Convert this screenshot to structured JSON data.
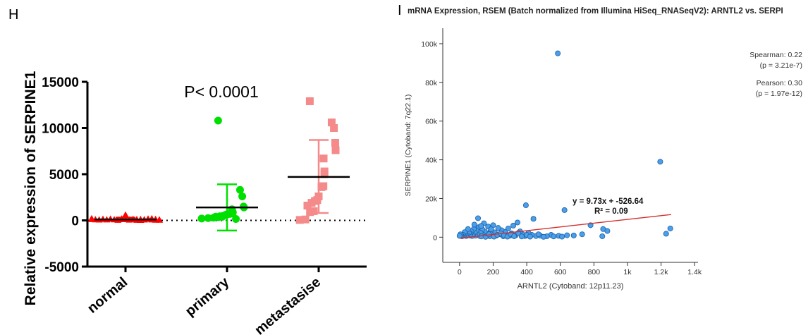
{
  "panels": {
    "left_letter": "H",
    "right_letter": "I"
  },
  "chart_data": [
    {
      "type": "scatter",
      "panel": "H",
      "title": "",
      "annotation": "P< 0.0001",
      "ylabel": "Relative expression of SERPINE1",
      "xlabel": "",
      "ylim": [
        -5000,
        15000
      ],
      "yticks": [
        -5000,
        0,
        5000,
        10000,
        15000
      ],
      "ytick_labels": [
        "-5000",
        "0",
        "5000",
        "10000",
        "15000"
      ],
      "reference_line": 0,
      "categories": [
        "normal",
        "primary",
        "metastasise"
      ],
      "groups": [
        {
          "name": "normal",
          "marker": "triangle",
          "color": "#ff0000",
          "mean": 100,
          "sd_low": -100,
          "sd_high": 300,
          "values": [
            120,
            80,
            60,
            200,
            150,
            90,
            40,
            110,
            130,
            70,
            600,
            180,
            50,
            100,
            160,
            90,
            140,
            75,
            95,
            210,
            60,
            130,
            85,
            170,
            100,
            120,
            45
          ]
        },
        {
          "name": "primary",
          "marker": "circle",
          "color": "#00e000",
          "mean": 1400,
          "sd_low": -1100,
          "sd_high": 3900,
          "values": [
            10800,
            3300,
            2600,
            1500,
            1400,
            1200,
            900,
            800,
            750,
            700,
            650,
            600,
            500,
            450,
            400,
            380,
            350,
            300,
            250,
            200,
            150
          ]
        },
        {
          "name": "metastasise",
          "marker": "square",
          "color": "#f48a8a",
          "mean": 4700,
          "sd_low": 800,
          "sd_high": 8700,
          "values": [
            12900,
            10600,
            10000,
            8400,
            7600,
            6700,
            5300,
            5000,
            3700,
            3600,
            2600,
            2200,
            2100,
            1900,
            1600,
            1000,
            900,
            100,
            50
          ]
        }
      ]
    },
    {
      "type": "scatter",
      "panel": "I",
      "title": "mRNA Expression, RSEM (Batch normalized from Illumina HiSeq_RNASeqV2): ARNTL2 vs. SERPI",
      "xlabel": "ARNTL2 (Cytoband: 12p11.23)",
      "ylabel": "SERPINE1 (Cytoband: 7q22.1)",
      "xlim": [
        -100,
        1420
      ],
      "ylim": [
        -13000,
        108000
      ],
      "xticks": [
        0,
        200,
        400,
        600,
        800,
        1000,
        1200,
        1400
      ],
      "xtick_labels": [
        "0",
        "200",
        "400",
        "600",
        "800",
        "1k",
        "1.2k",
        "1.4k"
      ],
      "yticks": [
        0,
        20000,
        40000,
        60000,
        80000,
        100000
      ],
      "ytick_labels": [
        "0",
        "20k",
        "40k",
        "60k",
        "80k",
        "100k"
      ],
      "point_color": "#4a9fe8",
      "regression": {
        "slope": 9.73,
        "intercept": -526.64,
        "x_range": [
          0,
          1260
        ],
        "color": "#d32f2f"
      },
      "regression_label": "y = 9.73x + -526.64",
      "r2_label": "R² = 0.09",
      "stats": {
        "spearman": "Spearman: 0.22",
        "spearman_p": "(p = 3.21e-7)",
        "pearson": "Pearson: 0.30",
        "pearson_p": "(p = 1.97e-12)"
      },
      "points": [
        [
          585,
          95000
        ],
        [
          1195,
          39000
        ],
        [
          395,
          16500
        ],
        [
          625,
          14000
        ],
        [
          1255,
          4500
        ],
        [
          1230,
          1800
        ],
        [
          855,
          4200
        ],
        [
          880,
          3200
        ],
        [
          850,
          500
        ],
        [
          780,
          6200
        ],
        [
          730,
          1500
        ],
        [
          680,
          900
        ],
        [
          640,
          1000
        ],
        [
          590,
          700
        ],
        [
          545,
          1200
        ],
        [
          520,
          500
        ],
        [
          480,
          800
        ],
        [
          455,
          600
        ],
        [
          440,
          9500
        ],
        [
          430,
          1200
        ],
        [
          410,
          2200
        ],
        [
          390,
          600
        ],
        [
          375,
          1500
        ],
        [
          360,
          3000
        ],
        [
          345,
          7600
        ],
        [
          335,
          1000
        ],
        [
          320,
          6000
        ],
        [
          310,
          2000
        ],
        [
          300,
          800
        ],
        [
          290,
          4500
        ],
        [
          280,
          1200
        ],
        [
          270,
          2800
        ],
        [
          260,
          500
        ],
        [
          250,
          3600
        ],
        [
          240,
          1500
        ],
        [
          230,
          4800
        ],
        [
          220,
          900
        ],
        [
          210,
          2500
        ],
        [
          200,
          6200
        ],
        [
          195,
          1000
        ],
        [
          185,
          3200
        ],
        [
          180,
          500
        ],
        [
          170,
          5500
        ],
        [
          165,
          1800
        ],
        [
          160,
          700
        ],
        [
          150,
          3000
        ],
        [
          145,
          7200
        ],
        [
          140,
          1200
        ],
        [
          135,
          4000
        ],
        [
          125,
          2200
        ],
        [
          120,
          600
        ],
        [
          115,
          5200
        ],
        [
          110,
          9800
        ],
        [
          105,
          1500
        ],
        [
          100,
          3500
        ],
        [
          95,
          800
        ],
        [
          90,
          2500
        ],
        [
          85,
          4300
        ],
        [
          80,
          1200
        ],
        [
          75,
          600
        ],
        [
          70,
          3000
        ],
        [
          65,
          1800
        ],
        [
          60,
          900
        ],
        [
          55,
          2200
        ],
        [
          50,
          4200
        ],
        [
          45,
          1000
        ],
        [
          40,
          600
        ],
        [
          35,
          1600
        ],
        [
          30,
          2600
        ],
        [
          25,
          800
        ],
        [
          20,
          1200
        ],
        [
          15,
          500
        ],
        [
          10,
          900
        ],
        [
          5,
          1500
        ],
        [
          0,
          700
        ],
        [
          130,
          400
        ],
        [
          155,
          200
        ],
        [
          175,
          1500
        ],
        [
          205,
          300
        ],
        [
          225,
          1200
        ],
        [
          245,
          2000
        ],
        [
          265,
          1000
        ],
        [
          285,
          300
        ],
        [
          305,
          1500
        ],
        [
          325,
          500
        ],
        [
          350,
          2200
        ],
        [
          370,
          400
        ],
        [
          400,
          1200
        ],
        [
          420,
          300
        ],
        [
          470,
          1500
        ],
        [
          500,
          200
        ],
        [
          560,
          400
        ],
        [
          610,
          300
        ],
        [
          88,
          6500
        ],
        [
          128,
          5800
        ],
        [
          188,
          4100
        ]
      ]
    }
  ]
}
